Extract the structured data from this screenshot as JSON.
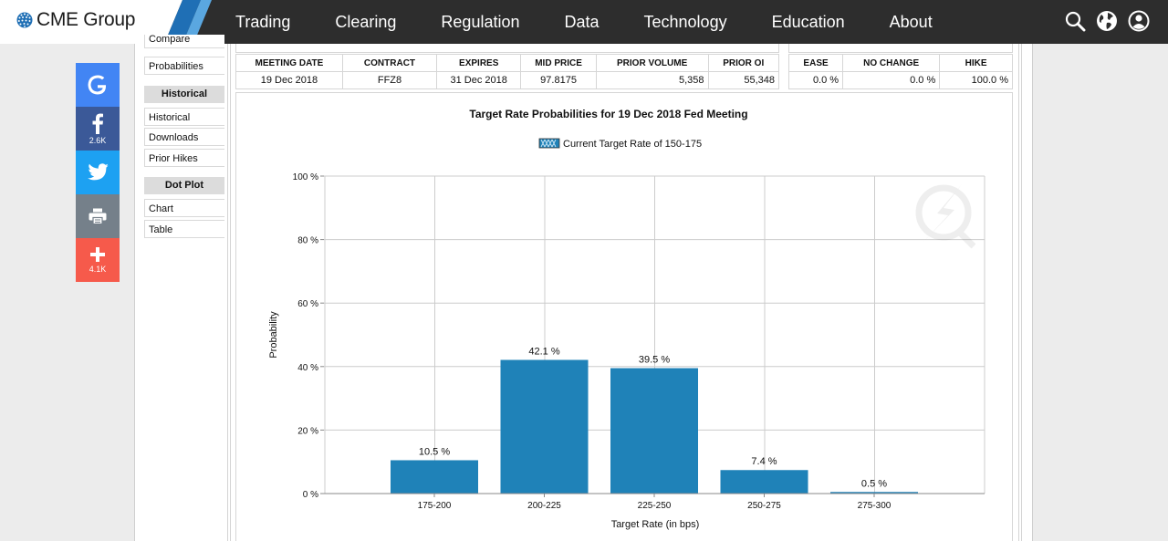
{
  "brand": {
    "name": "CME Group"
  },
  "nav": {
    "items": [
      "Trading",
      "Clearing",
      "Regulation",
      "Data",
      "Technology",
      "Education",
      "About"
    ]
  },
  "icons": {
    "search": "search-icon",
    "globe": "globe-icon",
    "user": "user-icon"
  },
  "social": {
    "facebook_count": "2.6K",
    "share_count": "4.1K",
    "colors": {
      "google": "#4285f4",
      "facebook": "#3b5998",
      "twitter": "#1da1f2",
      "print": "#75808a",
      "share": "#f65a4b"
    }
  },
  "sidebar": {
    "compare": "Compare",
    "probabilities": "Probabilities",
    "historical_heading": "Historical",
    "historical": "Historical",
    "downloads": "Downloads",
    "prior_hikes": "Prior Hikes",
    "dot_plot_heading": "Dot Plot",
    "chart": "Chart",
    "table": "Table"
  },
  "meeting_table": {
    "headers": [
      "MEETING DATE",
      "CONTRACT",
      "EXPIRES",
      "MID PRICE",
      "PRIOR VOLUME",
      "PRIOR OI"
    ],
    "row": [
      "19 Dec 2018",
      "FFZ8",
      "31 Dec 2018",
      "97.8175",
      "5,358",
      "55,348"
    ]
  },
  "prob_table": {
    "headers": [
      "EASE",
      "NO CHANGE",
      "HIKE"
    ],
    "row": [
      "0.0 %",
      "0.0 %",
      "100.0 %"
    ]
  },
  "chart_data": {
    "type": "bar",
    "title": "Target Rate Probabilities for 19 Dec 2018 Fed Meeting",
    "legend": "Current Target Rate of 150-175",
    "legend_position": "top-center",
    "xlabel": "Target Rate (in bps)",
    "ylabel": "Probability",
    "categories": [
      "175-200",
      "200-225",
      "225-250",
      "250-275",
      "275-300"
    ],
    "values": [
      10.5,
      42.1,
      39.5,
      7.4,
      0.5
    ],
    "value_labels": [
      "10.5 %",
      "42.1 %",
      "39.5 %",
      "7.4 %",
      "0.5 %"
    ],
    "yticks": [
      0,
      20,
      40,
      60,
      80,
      100
    ],
    "ytick_labels": [
      "0 %",
      "20 %",
      "40 %",
      "60 %",
      "80 %",
      "100 %"
    ],
    "ylim": [
      0,
      100
    ],
    "grid": true,
    "bar_color": "#1f82b8"
  }
}
